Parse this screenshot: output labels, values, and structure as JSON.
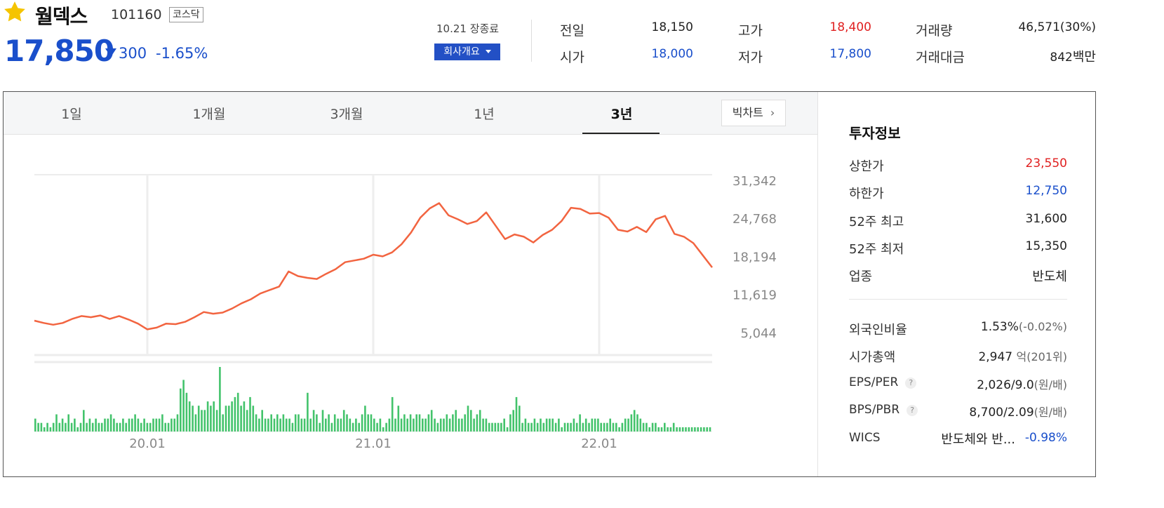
{
  "header": {
    "name": "월덱스",
    "code": "101160",
    "market": "코스닥",
    "price": "17,850",
    "change": "300",
    "change_pct": "-1.65%",
    "close_status": "10.21 장종료",
    "company_button": "회사개요"
  },
  "quote": {
    "prev_label": "전일",
    "prev": "18,150",
    "open_label": "시가",
    "open": "18,000",
    "high_label": "고가",
    "high": "18,400",
    "low_label": "저가",
    "low": "17,800",
    "volume_label": "거래량",
    "volume": "46,571(30%)",
    "amount_label": "거래대금",
    "amount_value": "842",
    "amount_unit": "백만"
  },
  "tabs": [
    "1일",
    "1개월",
    "3개월",
    "1년",
    "3년"
  ],
  "active_tab": "3년",
  "bigchart_label": "빅차트",
  "chart_data": {
    "type": "line",
    "y_ticks": [
      "31,342",
      "24,768",
      "18,194",
      "11,619",
      "5,044"
    ],
    "y_tick_values": [
      31342,
      24768,
      18194,
      11619,
      5044
    ],
    "x_ticks": [
      "20.01",
      "21.01",
      "22.01"
    ],
    "x_tick_positions": [
      6,
      18,
      30
    ],
    "x_range": [
      0,
      36
    ],
    "price_series": [
      {
        "x": 0,
        "y": 7100
      },
      {
        "x": 0.5,
        "y": 6700
      },
      {
        "x": 1,
        "y": 6400
      },
      {
        "x": 1.5,
        "y": 6700
      },
      {
        "x": 2,
        "y": 7400
      },
      {
        "x": 2.5,
        "y": 7900
      },
      {
        "x": 3,
        "y": 7700
      },
      {
        "x": 3.5,
        "y": 8000
      },
      {
        "x": 4,
        "y": 7400
      },
      {
        "x": 4.5,
        "y": 7900
      },
      {
        "x": 5,
        "y": 7300
      },
      {
        "x": 5.5,
        "y": 6600
      },
      {
        "x": 6,
        "y": 5600
      },
      {
        "x": 6.5,
        "y": 5900
      },
      {
        "x": 7,
        "y": 6600
      },
      {
        "x": 7.5,
        "y": 6500
      },
      {
        "x": 8,
        "y": 6900
      },
      {
        "x": 8.5,
        "y": 7700
      },
      {
        "x": 9,
        "y": 8600
      },
      {
        "x": 9.5,
        "y": 8300
      },
      {
        "x": 10,
        "y": 8500
      },
      {
        "x": 10.5,
        "y": 9200
      },
      {
        "x": 11,
        "y": 10100
      },
      {
        "x": 11.5,
        "y": 10800
      },
      {
        "x": 12,
        "y": 11800
      },
      {
        "x": 12.5,
        "y": 12400
      },
      {
        "x": 13,
        "y": 13000
      },
      {
        "x": 13.5,
        "y": 15600
      },
      {
        "x": 14,
        "y": 14800
      },
      {
        "x": 14.5,
        "y": 14500
      },
      {
        "x": 15,
        "y": 14300
      },
      {
        "x": 15.5,
        "y": 15200
      },
      {
        "x": 16,
        "y": 16000
      },
      {
        "x": 16.5,
        "y": 17200
      },
      {
        "x": 17,
        "y": 17500
      },
      {
        "x": 17.5,
        "y": 17800
      },
      {
        "x": 18,
        "y": 18500
      },
      {
        "x": 18.5,
        "y": 18200
      },
      {
        "x": 19,
        "y": 18900
      },
      {
        "x": 19.5,
        "y": 20300
      },
      {
        "x": 20,
        "y": 22300
      },
      {
        "x": 20.5,
        "y": 24900
      },
      {
        "x": 21,
        "y": 26500
      },
      {
        "x": 21.5,
        "y": 27400
      },
      {
        "x": 22,
        "y": 25300
      },
      {
        "x": 22.5,
        "y": 24600
      },
      {
        "x": 23,
        "y": 23800
      },
      {
        "x": 23.5,
        "y": 24300
      },
      {
        "x": 24,
        "y": 25800
      },
      {
        "x": 24.5,
        "y": 23500
      },
      {
        "x": 25,
        "y": 21200
      },
      {
        "x": 25.5,
        "y": 22000
      },
      {
        "x": 26,
        "y": 21600
      },
      {
        "x": 26.5,
        "y": 20600
      },
      {
        "x": 27,
        "y": 21900
      },
      {
        "x": 27.5,
        "y": 22800
      },
      {
        "x": 28,
        "y": 24300
      },
      {
        "x": 28.5,
        "y": 26600
      },
      {
        "x": 29,
        "y": 26400
      },
      {
        "x": 29.5,
        "y": 25600
      },
      {
        "x": 30,
        "y": 25700
      },
      {
        "x": 30.5,
        "y": 24900
      },
      {
        "x": 31,
        "y": 22800
      },
      {
        "x": 31.5,
        "y": 22500
      },
      {
        "x": 32,
        "y": 23300
      },
      {
        "x": 32.5,
        "y": 22400
      },
      {
        "x": 33,
        "y": 24600
      },
      {
        "x": 33.5,
        "y": 25200
      },
      {
        "x": 34,
        "y": 22100
      },
      {
        "x": 34.5,
        "y": 21600
      },
      {
        "x": 35,
        "y": 20500
      },
      {
        "x": 35.5,
        "y": 18400
      },
      {
        "x": 36,
        "y": 16300
      }
    ],
    "volume_series": [
      3,
      2,
      2,
      1,
      2,
      1,
      2,
      4,
      2,
      3,
      2,
      4,
      2,
      3,
      1,
      2,
      5,
      2,
      3,
      2,
      3,
      2,
      2,
      3,
      3,
      4,
      3,
      2,
      2,
      3,
      2,
      3,
      3,
      4,
      3,
      2,
      3,
      2,
      2,
      3,
      3,
      3,
      4,
      2,
      2,
      3,
      3,
      4,
      10,
      12,
      9,
      7,
      6,
      4,
      6,
      5,
      5,
      7,
      6,
      7,
      5,
      15,
      4,
      6,
      6,
      7,
      8,
      9,
      6,
      7,
      5,
      8,
      6,
      4,
      3,
      5,
      3,
      3,
      4,
      3,
      4,
      3,
      4,
      3,
      3,
      2,
      4,
      4,
      3,
      3,
      9,
      3,
      5,
      4,
      2,
      5,
      3,
      4,
      2,
      4,
      3,
      3,
      5,
      4,
      3,
      2,
      3,
      2,
      4,
      6,
      4,
      4,
      3,
      2,
      3,
      1,
      2,
      3,
      8,
      3,
      6,
      3,
      4,
      3,
      4,
      3,
      4,
      4,
      3,
      3,
      4,
      5,
      3,
      2,
      3,
      3,
      4,
      3,
      4,
      5,
      3,
      3,
      4,
      6,
      5,
      3,
      4,
      5,
      3,
      3,
      2,
      2,
      2,
      2,
      2,
      3,
      1,
      4,
      5,
      8,
      6,
      2,
      3,
      2,
      2,
      3,
      2,
      3,
      2,
      3,
      3,
      3,
      2,
      3,
      1,
      2,
      2,
      2,
      3,
      2,
      4,
      2,
      3,
      2,
      3,
      3,
      3,
      2,
      2,
      2,
      3,
      2,
      2,
      1,
      2,
      3,
      3,
      4,
      5,
      4,
      3,
      2,
      2,
      1,
      2,
      2,
      1,
      1,
      2,
      1,
      1,
      2,
      1,
      1,
      1,
      1,
      1,
      1,
      1,
      1,
      1,
      1,
      1,
      1
    ]
  },
  "invest": {
    "title": "투자정보",
    "upper_label": "상한가",
    "upper": "23,550",
    "lower_label": "하한가",
    "lower": "12,750",
    "w52_high_label": "52주 최고",
    "w52_high": "31,600",
    "w52_low_label": "52주 최저",
    "w52_low": "15,350",
    "sector_label": "업종",
    "sector": "반도체",
    "foreign_label": "외국인비율",
    "foreign": "1.53%",
    "foreign_change": "(-0.02%)",
    "mcap_label": "시가총액",
    "mcap": "2,947",
    "mcap_unit": "억(201위)",
    "eps_label": "EPS/PER",
    "eps": "2,026/9.0",
    "eps_unit": "(원/배)",
    "bps_label": "BPS/PBR",
    "bps": "8,700/2.09",
    "bps_unit": "(원/배)",
    "wics_label": "WICS",
    "wics": "반도체와 반...",
    "wics_change": "-0.98%",
    "help": "?"
  },
  "colors": {
    "price_blue": "#1a4fcb",
    "up_red": "#e02020",
    "line": "#f26440",
    "volume": "#43c36b"
  }
}
